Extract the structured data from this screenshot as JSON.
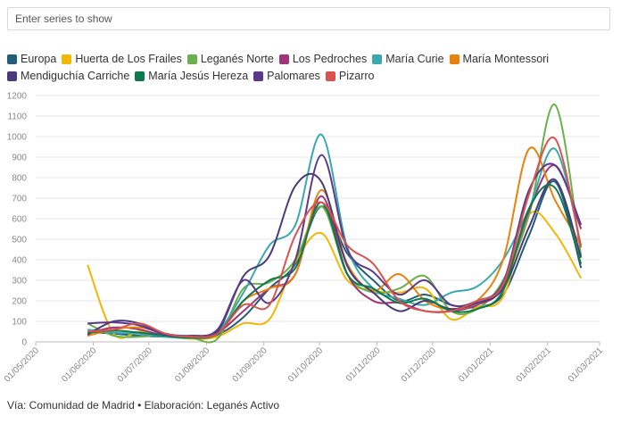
{
  "search": {
    "placeholder": "Enter series to show"
  },
  "footer": {
    "text": "Vía: Comunidad de Madrid • Elaboración: Leganés Activo"
  },
  "chart_data": {
    "type": "line",
    "title": "",
    "xlabel": "",
    "ylabel": "",
    "ylim": [
      0,
      1200
    ],
    "yticks": [
      0,
      100,
      200,
      300,
      400,
      500,
      600,
      700,
      800,
      900,
      1000,
      1100,
      1200
    ],
    "xlim": [
      "2020-05-01",
      "2021-03-01"
    ],
    "xticks": [
      "01/05/2020",
      "01/06/2020",
      "01/07/2020",
      "01/08/2020",
      "01/09/2020",
      "01/10/2020",
      "01/11/2020",
      "01/12/2020",
      "01/01/2021",
      "01/02/2021",
      "01/03/2021"
    ],
    "grid": true,
    "legend_position": "top",
    "x": [
      "2020-05-29",
      "2020-06-12",
      "2020-06-26",
      "2020-07-10",
      "2020-07-24",
      "2020-08-07",
      "2020-08-21",
      "2020-09-04",
      "2020-09-18",
      "2020-10-02",
      "2020-10-16",
      "2020-10-30",
      "2020-11-13",
      "2020-11-27",
      "2020-12-11",
      "2020-12-25",
      "2021-01-08",
      "2021-01-22",
      "2021-02-05",
      "2021-02-19"
    ],
    "series": [
      {
        "name": "Europa",
        "color": "#1f5f7a",
        "values": [
          50,
          40,
          30,
          25,
          20,
          35,
          120,
          260,
          380,
          660,
          430,
          300,
          200,
          230,
          180,
          170,
          230,
          520,
          780,
          360
        ]
      },
      {
        "name": "Huerta de Los Frailes",
        "color": "#f2b705",
        "values": [
          375,
          40,
          50,
          30,
          15,
          25,
          90,
          110,
          390,
          530,
          300,
          250,
          240,
          260,
          110,
          170,
          220,
          620,
          530,
          310
        ]
      },
      {
        "name": "Leganés Norte",
        "color": "#6ab04c",
        "values": [
          90,
          30,
          25,
          35,
          20,
          15,
          260,
          290,
          400,
          660,
          330,
          240,
          260,
          320,
          150,
          160,
          300,
          620,
          1155,
          420
        ]
      },
      {
        "name": "Los Pedroches",
        "color": "#a03479",
        "values": [
          40,
          70,
          60,
          30,
          25,
          45,
          150,
          260,
          330,
          710,
          330,
          200,
          190,
          150,
          150,
          180,
          270,
          640,
          860,
          550
        ]
      },
      {
        "name": "María Curie",
        "color": "#3aa8b0",
        "values": [
          60,
          45,
          40,
          25,
          20,
          50,
          240,
          470,
          570,
          1010,
          460,
          260,
          210,
          180,
          240,
          270,
          400,
          650,
          940,
          470
        ]
      },
      {
        "name": "María Montessori",
        "color": "#e8820e",
        "values": [
          30,
          60,
          70,
          40,
          20,
          40,
          200,
          260,
          330,
          740,
          380,
          250,
          330,
          200,
          160,
          200,
          400,
          940,
          690,
          470
        ]
      },
      {
        "name": "Mendiguchía Carriche",
        "color": "#4a3b7a",
        "values": [
          35,
          100,
          90,
          40,
          30,
          50,
          320,
          420,
          760,
          780,
          370,
          240,
          150,
          200,
          160,
          190,
          260,
          560,
          790,
          410
        ]
      },
      {
        "name": "María Jesús Hereza",
        "color": "#0d7a4e",
        "values": [
          45,
          55,
          45,
          30,
          20,
          40,
          200,
          300,
          360,
          680,
          330,
          260,
          190,
          210,
          150,
          160,
          250,
          650,
          750,
          380
        ]
      },
      {
        "name": "Palomares",
        "color": "#5b3a8c",
        "values": [
          90,
          95,
          80,
          35,
          30,
          60,
          300,
          190,
          400,
          910,
          450,
          340,
          230,
          300,
          180,
          200,
          290,
          740,
          860,
          570
        ]
      },
      {
        "name": "Pizarro",
        "color": "#d9534f",
        "values": [
          50,
          60,
          90,
          40,
          25,
          40,
          180,
          180,
          520,
          680,
          470,
          380,
          200,
          150,
          150,
          200,
          280,
          720,
          990,
          460
        ]
      }
    ]
  }
}
